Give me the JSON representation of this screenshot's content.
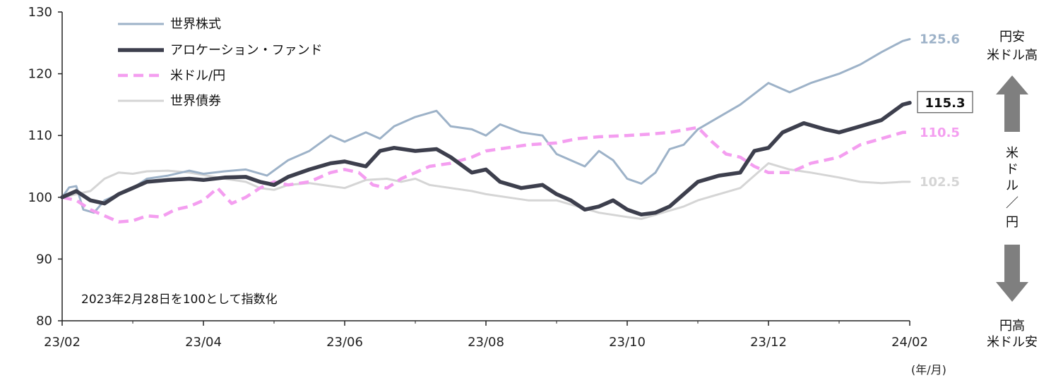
{
  "chart_data": {
    "type": "line",
    "note": "2023年2月28日を100として指数化",
    "unit_label": "(年/月)",
    "ylim": [
      80,
      130
    ],
    "yticks": [
      80,
      90,
      100,
      110,
      120,
      130
    ],
    "xlim": [
      0,
      12
    ],
    "xtick_labels": [
      "23/02",
      "23/04",
      "23/06",
      "23/08",
      "23/10",
      "23/12",
      "24/02"
    ],
    "xtick_positions": [
      0,
      2,
      4,
      6,
      8,
      10,
      12
    ],
    "grid": false,
    "legend_placement": "top-left",
    "series": [
      {
        "name": "世界株式",
        "color": "#9db2c8",
        "dash": "solid",
        "end_label": "125.6",
        "points": [
          [
            0,
            100
          ],
          [
            0.1,
            101.6
          ],
          [
            0.2,
            101.8
          ],
          [
            0.3,
            98
          ],
          [
            0.45,
            97.5
          ],
          [
            0.6,
            99.5
          ],
          [
            0.8,
            100.5
          ],
          [
            1.0,
            101.5
          ],
          [
            1.2,
            103
          ],
          [
            1.5,
            103.5
          ],
          [
            1.8,
            104.3
          ],
          [
            2.0,
            103.8
          ],
          [
            2.3,
            104.2
          ],
          [
            2.6,
            104.5
          ],
          [
            2.9,
            103.5
          ],
          [
            3.2,
            106
          ],
          [
            3.5,
            107.5
          ],
          [
            3.8,
            110
          ],
          [
            4.0,
            109
          ],
          [
            4.3,
            110.5
          ],
          [
            4.5,
            109.5
          ],
          [
            4.7,
            111.5
          ],
          [
            5.0,
            113
          ],
          [
            5.3,
            114
          ],
          [
            5.5,
            111.5
          ],
          [
            5.8,
            111
          ],
          [
            6.0,
            110
          ],
          [
            6.2,
            111.8
          ],
          [
            6.5,
            110.5
          ],
          [
            6.8,
            110
          ],
          [
            7.0,
            107
          ],
          [
            7.2,
            106
          ],
          [
            7.4,
            105
          ],
          [
            7.6,
            107.5
          ],
          [
            7.8,
            106
          ],
          [
            8.0,
            103
          ],
          [
            8.2,
            102.2
          ],
          [
            8.4,
            104
          ],
          [
            8.6,
            107.8
          ],
          [
            8.8,
            108.5
          ],
          [
            9.0,
            111
          ],
          [
            9.3,
            113
          ],
          [
            9.6,
            115
          ],
          [
            10.0,
            118.5
          ],
          [
            10.3,
            117
          ],
          [
            10.6,
            118.5
          ],
          [
            11.0,
            120
          ],
          [
            11.3,
            121.5
          ],
          [
            11.6,
            123.5
          ],
          [
            11.9,
            125.3
          ],
          [
            12.0,
            125.6
          ]
        ]
      },
      {
        "name": "アロケーション・ファンド",
        "color": "#3d3f4d",
        "dash": "solid",
        "end_label": "115.3",
        "end_label_boxed": true,
        "points": [
          [
            0,
            100
          ],
          [
            0.2,
            101
          ],
          [
            0.4,
            99.5
          ],
          [
            0.6,
            99
          ],
          [
            0.8,
            100.5
          ],
          [
            1.0,
            101.5
          ],
          [
            1.2,
            102.5
          ],
          [
            1.5,
            102.8
          ],
          [
            1.8,
            103
          ],
          [
            2.0,
            102.8
          ],
          [
            2.3,
            103.2
          ],
          [
            2.6,
            103.3
          ],
          [
            2.8,
            102.5
          ],
          [
            3.0,
            102
          ],
          [
            3.2,
            103.3
          ],
          [
            3.5,
            104.5
          ],
          [
            3.8,
            105.5
          ],
          [
            4.0,
            105.8
          ],
          [
            4.3,
            105
          ],
          [
            4.5,
            107.5
          ],
          [
            4.7,
            108
          ],
          [
            5.0,
            107.5
          ],
          [
            5.3,
            107.8
          ],
          [
            5.5,
            106.5
          ],
          [
            5.8,
            104
          ],
          [
            6.0,
            104.5
          ],
          [
            6.2,
            102.5
          ],
          [
            6.5,
            101.5
          ],
          [
            6.8,
            102
          ],
          [
            7.0,
            100.5
          ],
          [
            7.2,
            99.5
          ],
          [
            7.4,
            98
          ],
          [
            7.6,
            98.5
          ],
          [
            7.8,
            99.5
          ],
          [
            8.0,
            98
          ],
          [
            8.2,
            97.2
          ],
          [
            8.4,
            97.5
          ],
          [
            8.6,
            98.5
          ],
          [
            8.8,
            100.5
          ],
          [
            9.0,
            102.5
          ],
          [
            9.3,
            103.5
          ],
          [
            9.6,
            104
          ],
          [
            9.8,
            107.5
          ],
          [
            10.0,
            108
          ],
          [
            10.2,
            110.5
          ],
          [
            10.5,
            112
          ],
          [
            10.8,
            111
          ],
          [
            11.0,
            110.5
          ],
          [
            11.3,
            111.5
          ],
          [
            11.6,
            112.5
          ],
          [
            11.9,
            115
          ],
          [
            12.0,
            115.3
          ]
        ]
      },
      {
        "name": "米ドル/円",
        "color": "#f49ef0",
        "dash": "dashed",
        "end_label": "110.5",
        "points": [
          [
            0,
            100
          ],
          [
            0.2,
            99.5
          ],
          [
            0.4,
            98
          ],
          [
            0.6,
            97
          ],
          [
            0.8,
            96
          ],
          [
            1.0,
            96.2
          ],
          [
            1.2,
            97
          ],
          [
            1.4,
            96.8
          ],
          [
            1.6,
            98
          ],
          [
            1.8,
            98.5
          ],
          [
            2.0,
            99.5
          ],
          [
            2.2,
            101.5
          ],
          [
            2.4,
            99
          ],
          [
            2.6,
            100
          ],
          [
            2.8,
            101.5
          ],
          [
            3.0,
            102.5
          ],
          [
            3.2,
            102
          ],
          [
            3.5,
            102.5
          ],
          [
            3.8,
            104
          ],
          [
            4.0,
            104.5
          ],
          [
            4.2,
            104
          ],
          [
            4.4,
            102
          ],
          [
            4.6,
            101.5
          ],
          [
            4.8,
            103
          ],
          [
            5.0,
            104
          ],
          [
            5.2,
            105
          ],
          [
            5.5,
            105.5
          ],
          [
            5.8,
            106.5
          ],
          [
            6.0,
            107.5
          ],
          [
            6.3,
            108
          ],
          [
            6.6,
            108.5
          ],
          [
            7.0,
            108.8
          ],
          [
            7.3,
            109.5
          ],
          [
            7.6,
            109.8
          ],
          [
            8.0,
            110
          ],
          [
            8.3,
            110.2
          ],
          [
            8.6,
            110.5
          ],
          [
            9.0,
            111.3
          ],
          [
            9.2,
            109
          ],
          [
            9.4,
            107
          ],
          [
            9.6,
            106.5
          ],
          [
            9.8,
            105
          ],
          [
            10.0,
            104
          ],
          [
            10.3,
            104
          ],
          [
            10.6,
            105.5
          ],
          [
            11.0,
            106.5
          ],
          [
            11.3,
            108.5
          ],
          [
            11.6,
            109.5
          ],
          [
            11.9,
            110.5
          ],
          [
            12.0,
            110.5
          ]
        ]
      },
      {
        "name": "世界債券",
        "color": "#d5d5d5",
        "dash": "solid",
        "end_label": "102.5",
        "points": [
          [
            0,
            100
          ],
          [
            0.2,
            100.5
          ],
          [
            0.4,
            101
          ],
          [
            0.6,
            103
          ],
          [
            0.8,
            104
          ],
          [
            1.0,
            103.8
          ],
          [
            1.2,
            104.2
          ],
          [
            1.5,
            104.3
          ],
          [
            1.8,
            104
          ],
          [
            2.0,
            103.6
          ],
          [
            2.3,
            103
          ],
          [
            2.6,
            102.5
          ],
          [
            2.8,
            101.5
          ],
          [
            3.0,
            101.2
          ],
          [
            3.2,
            102
          ],
          [
            3.5,
            102.3
          ],
          [
            3.8,
            101.8
          ],
          [
            4.0,
            101.5
          ],
          [
            4.3,
            102.8
          ],
          [
            4.6,
            103
          ],
          [
            4.8,
            102.5
          ],
          [
            5.0,
            103
          ],
          [
            5.2,
            102
          ],
          [
            5.5,
            101.5
          ],
          [
            5.8,
            101
          ],
          [
            6.0,
            100.5
          ],
          [
            6.3,
            100
          ],
          [
            6.6,
            99.5
          ],
          [
            7.0,
            99.5
          ],
          [
            7.3,
            98.5
          ],
          [
            7.6,
            97.5
          ],
          [
            8.0,
            96.8
          ],
          [
            8.2,
            96.5
          ],
          [
            8.5,
            97.5
          ],
          [
            8.8,
            98.5
          ],
          [
            9.0,
            99.5
          ],
          [
            9.3,
            100.5
          ],
          [
            9.6,
            101.5
          ],
          [
            9.8,
            103.5
          ],
          [
            10.0,
            105.5
          ],
          [
            10.3,
            104.5
          ],
          [
            10.6,
            104
          ],
          [
            11.0,
            103.2
          ],
          [
            11.3,
            102.5
          ],
          [
            11.6,
            102.3
          ],
          [
            11.9,
            102.5
          ],
          [
            12.0,
            102.5
          ]
        ]
      }
    ]
  },
  "side_annotations": {
    "top": [
      "円安",
      "米ドル高"
    ],
    "middle": [
      "米",
      "ド",
      "ル",
      "／",
      "円"
    ],
    "bottom": [
      "円高",
      "米ドル安"
    ],
    "arrow_color": "#7f7f7f"
  }
}
